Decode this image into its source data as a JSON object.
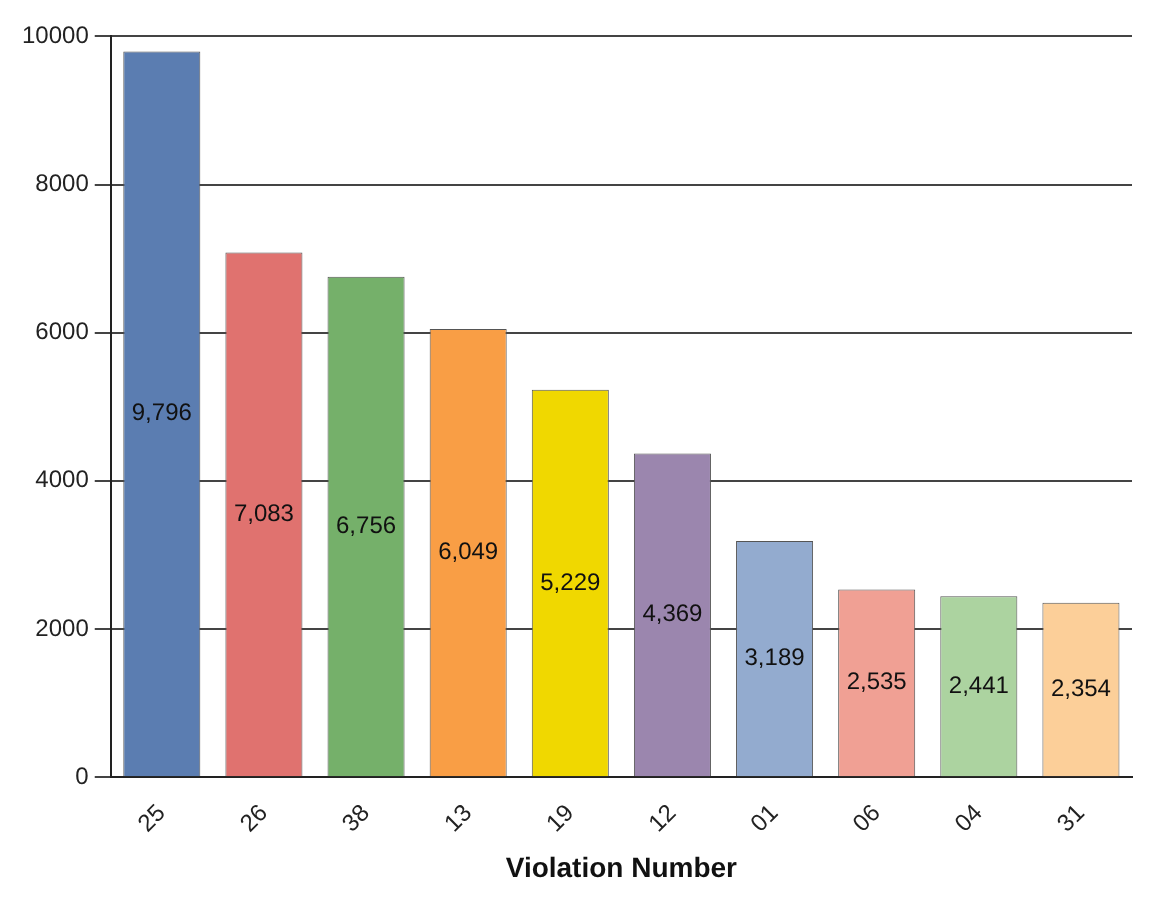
{
  "chart_data": {
    "type": "bar",
    "xlabel": "Violation Number",
    "categories": [
      "25",
      "26",
      "38",
      "13",
      "19",
      "12",
      "01",
      "06",
      "04",
      "31"
    ],
    "values": [
      9796,
      7083,
      6756,
      6049,
      5229,
      4369,
      3189,
      2535,
      2441,
      2354
    ],
    "value_labels": [
      "9,796",
      "7,083",
      "6,756",
      "6,049",
      "5,229",
      "4,369",
      "3,189",
      "2,535",
      "2,441",
      "2,354"
    ],
    "colors": [
      "#5b7db1",
      "#e0726f",
      "#75b06a",
      "#f99e45",
      "#f0d800",
      "#9b86ae",
      "#93abcf",
      "#f0a094",
      "#acd3a0",
      "#fccf99"
    ],
    "ylim": [
      0,
      10000
    ],
    "yticks": [
      0,
      2000,
      4000,
      6000,
      8000,
      10000
    ],
    "grid": "y",
    "legend": false
  }
}
